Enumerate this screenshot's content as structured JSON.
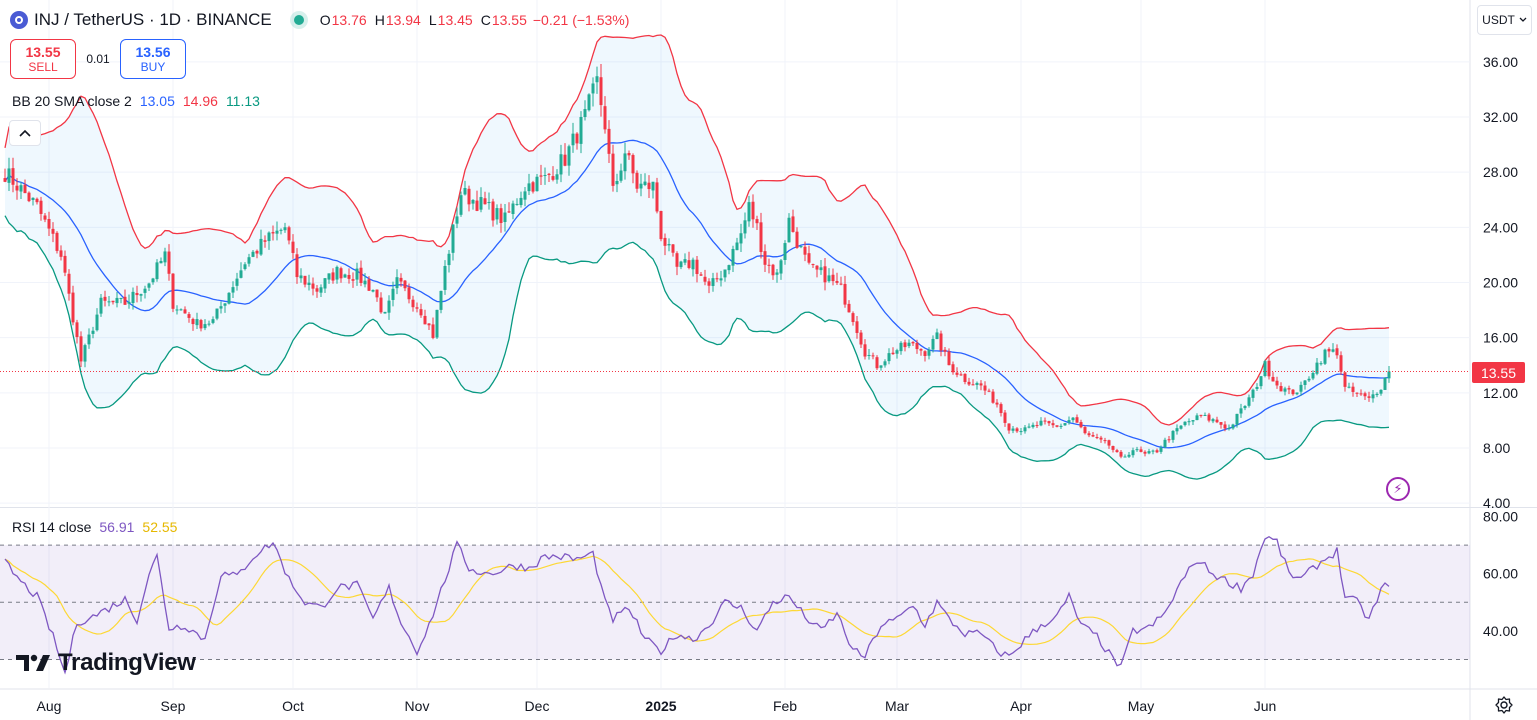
{
  "header": {
    "symbol_title": "INJ / TetherUS · 1D · BINANCE",
    "ohlc": [
      {
        "key": "O",
        "value": "13.76"
      },
      {
        "key": "H",
        "value": "13.94"
      },
      {
        "key": "L",
        "value": "13.45"
      },
      {
        "key": "C",
        "value": "13.55"
      }
    ],
    "change": "−0.21 (−1.53%)",
    "market_status_color": "#22ab94"
  },
  "trade": {
    "sell_price": "13.55",
    "sell_label": "SELL",
    "spread": "0.01",
    "buy_price": "13.56",
    "buy_label": "BUY"
  },
  "indicators": {
    "bb": {
      "label": "BB 20 SMA close 2",
      "basis": "13.05",
      "upper": "14.96",
      "lower": "11.13"
    },
    "rsi": {
      "label": "RSI 14 close",
      "value": "56.91",
      "ma": "52.55"
    }
  },
  "currency_button": "USDT",
  "current_price_label": "13.55",
  "branding": "TradingView",
  "colors": {
    "up": "#22ab94",
    "down": "#f23645",
    "bb_basis": "#2962ff",
    "bb_upper": "#f23645",
    "bb_lower": "#089981",
    "rsi": "#7e57c2",
    "rsi_ma": "#fdd835"
  },
  "chart_data": [
    {
      "type": "candlestick",
      "title": "INJ / TetherUS · 1D · BINANCE",
      "x_tick_labels": [
        "Aug",
        "Sep",
        "Oct",
        "Nov",
        "Dec",
        "2025",
        "Feb",
        "Mar",
        "Apr",
        "May",
        "Jun"
      ],
      "y_ticks": [
        4,
        8,
        12,
        16,
        20,
        24,
        28,
        32,
        36
      ],
      "y_tick_labels": [
        "4.00",
        "8.00",
        "12.00",
        "16.00",
        "20.00",
        "24.00",
        "28.00",
        "32.00",
        "36.00"
      ],
      "ylim": [
        3.2,
        39.5
      ],
      "current_price": 13.55,
      "price_anchors": [
        [
          0,
          28.0
        ],
        [
          8,
          25.5
        ],
        [
          14,
          22.0
        ],
        [
          17,
          17.5
        ],
        [
          19,
          14.3
        ],
        [
          24,
          18.5
        ],
        [
          30,
          18.5
        ],
        [
          36,
          20.0
        ],
        [
          40,
          22.0
        ],
        [
          42,
          18.5
        ],
        [
          48,
          17.0
        ],
        [
          52,
          17.2
        ],
        [
          55,
          18.8
        ],
        [
          60,
          21.5
        ],
        [
          65,
          23.0
        ],
        [
          70,
          24.0
        ],
        [
          73,
          20.5
        ],
        [
          78,
          19.5
        ],
        [
          83,
          20.8
        ],
        [
          88,
          20.5
        ],
        [
          92,
          19.5
        ],
        [
          95,
          17.5
        ],
        [
          98,
          20.0
        ],
        [
          104,
          18.0
        ],
        [
          107,
          16.2
        ],
        [
          110,
          21.0
        ],
        [
          114,
          26.5
        ],
        [
          120,
          25.5
        ],
        [
          125,
          24.5
        ],
        [
          130,
          27.0
        ],
        [
          135,
          27.5
        ],
        [
          140,
          29.0
        ],
        [
          145,
          32.0
        ],
        [
          148,
          34.5
        ],
        [
          150,
          31.5
        ],
        [
          152,
          26.5
        ],
        [
          155,
          29.5
        ],
        [
          158,
          27.0
        ],
        [
          162,
          27.0
        ],
        [
          164,
          23.5
        ],
        [
          168,
          21.0
        ],
        [
          172,
          21.5
        ],
        [
          176,
          19.5
        ],
        [
          180,
          21.0
        ],
        [
          184,
          23.5
        ],
        [
          186,
          25.5
        ],
        [
          188,
          24.0
        ],
        [
          190,
          21.5
        ],
        [
          193,
          20.5
        ],
        [
          196,
          24.5
        ],
        [
          198,
          23.0
        ],
        [
          201,
          21.0
        ],
        [
          205,
          20.5
        ],
        [
          209,
          19.5
        ],
        [
          212,
          17.5
        ],
        [
          215,
          15.0
        ],
        [
          218,
          14.0
        ],
        [
          222,
          15.0
        ],
        [
          226,
          15.5
        ],
        [
          230,
          15.0
        ],
        [
          233,
          16.0
        ],
        [
          236,
          14.0
        ],
        [
          240,
          13.0
        ],
        [
          244,
          12.5
        ],
        [
          248,
          11.2
        ],
        [
          251,
          9.5
        ],
        [
          255,
          9.3
        ],
        [
          259,
          9.8
        ],
        [
          263,
          9.5
        ],
        [
          267,
          10.2
        ],
        [
          270,
          9.0
        ],
        [
          273,
          8.6
        ],
        [
          276,
          8.2
        ],
        [
          279,
          7.2
        ],
        [
          282,
          7.9
        ],
        [
          285,
          7.5
        ],
        [
          288,
          7.8
        ],
        [
          291,
          8.8
        ],
        [
          295,
          9.8
        ],
        [
          299,
          10.3
        ],
        [
          303,
          9.9
        ],
        [
          306,
          9.4
        ],
        [
          309,
          10.7
        ],
        [
          312,
          12.0
        ],
        [
          315,
          14.0
        ],
        [
          318,
          12.6
        ],
        [
          321,
          12.0
        ],
        [
          324,
          12.3
        ],
        [
          327,
          13.7
        ],
        [
          330,
          14.9
        ],
        [
          333,
          15.0
        ],
        [
          335,
          12.3
        ],
        [
          338,
          11.9
        ],
        [
          341,
          11.5
        ],
        [
          344,
          12.5
        ],
        [
          346,
          13.55
        ]
      ],
      "rsi_anchors": [
        [
          0,
          64
        ],
        [
          4,
          57
        ],
        [
          8,
          52
        ],
        [
          12,
          38
        ],
        [
          15,
          25
        ],
        [
          18,
          43
        ],
        [
          22,
          45
        ],
        [
          26,
          48
        ],
        [
          30,
          51
        ],
        [
          33,
          44
        ],
        [
          36,
          60
        ],
        [
          38,
          66
        ],
        [
          41,
          41
        ],
        [
          45,
          42
        ],
        [
          50,
          37
        ],
        [
          54,
          60
        ],
        [
          58,
          59
        ],
        [
          62,
          66
        ],
        [
          67,
          71
        ],
        [
          71,
          58
        ],
        [
          75,
          50
        ],
        [
          79,
          48
        ],
        [
          83,
          55
        ],
        [
          88,
          56
        ],
        [
          92,
          44
        ],
        [
          96,
          55
        ],
        [
          99,
          43
        ],
        [
          103,
          33
        ],
        [
          106,
          42
        ],
        [
          110,
          58
        ],
        [
          113,
          70
        ],
        [
          116,
          62
        ],
        [
          120,
          60
        ],
        [
          124,
          61
        ],
        [
          127,
          63
        ],
        [
          131,
          62
        ],
        [
          135,
          66
        ],
        [
          139,
          66
        ],
        [
          143,
          65
        ],
        [
          147,
          67
        ],
        [
          150,
          50
        ],
        [
          152,
          44
        ],
        [
          156,
          48
        ],
        [
          160,
          37
        ],
        [
          164,
          33
        ],
        [
          168,
          39
        ],
        [
          172,
          37
        ],
        [
          176,
          42
        ],
        [
          180,
          50
        ],
        [
          184,
          48
        ],
        [
          188,
          40
        ],
        [
          192,
          50
        ],
        [
          196,
          52
        ],
        [
          200,
          45
        ],
        [
          204,
          40
        ],
        [
          208,
          46
        ],
        [
          212,
          33
        ],
        [
          215,
          31
        ],
        [
          219,
          42
        ],
        [
          223,
          44
        ],
        [
          227,
          49
        ],
        [
          230,
          42
        ],
        [
          233,
          50
        ],
        [
          236,
          44
        ],
        [
          240,
          39
        ],
        [
          244,
          39
        ],
        [
          248,
          33
        ],
        [
          251,
          31
        ],
        [
          255,
          37
        ],
        [
          259,
          42
        ],
        [
          263,
          45
        ],
        [
          266,
          52
        ],
        [
          269,
          42
        ],
        [
          273,
          38
        ],
        [
          276,
          32
        ],
        [
          279,
          27
        ],
        [
          282,
          40
        ],
        [
          286,
          41
        ],
        [
          290,
          46
        ],
        [
          294,
          57
        ],
        [
          298,
          65
        ],
        [
          302,
          60
        ],
        [
          306,
          57
        ],
        [
          309,
          55
        ],
        [
          312,
          60
        ],
        [
          315,
          73
        ],
        [
          318,
          71
        ],
        [
          321,
          60
        ],
        [
          324,
          58
        ],
        [
          328,
          63
        ],
        [
          331,
          66
        ],
        [
          333,
          68
        ],
        [
          335,
          52
        ],
        [
          338,
          50
        ],
        [
          341,
          44
        ],
        [
          344,
          54
        ],
        [
          346,
          57
        ]
      ],
      "bollinger": {
        "period": 20,
        "stdev": 2,
        "basis_last": 13.05,
        "upper_last": 14.96,
        "lower_last": 11.13
      }
    },
    {
      "type": "line",
      "title": "RSI 14 close",
      "y_ticks": [
        40,
        60,
        80
      ],
      "y_tick_labels": [
        "40.00",
        "60.00",
        "80.00"
      ],
      "ylim": [
        20,
        85
      ],
      "bands": {
        "upper": 70,
        "middle": 50,
        "lower": 30
      },
      "series": [
        {
          "name": "RSI",
          "last": 56.91
        },
        {
          "name": "RSI MA",
          "last": 52.55
        }
      ]
    }
  ]
}
